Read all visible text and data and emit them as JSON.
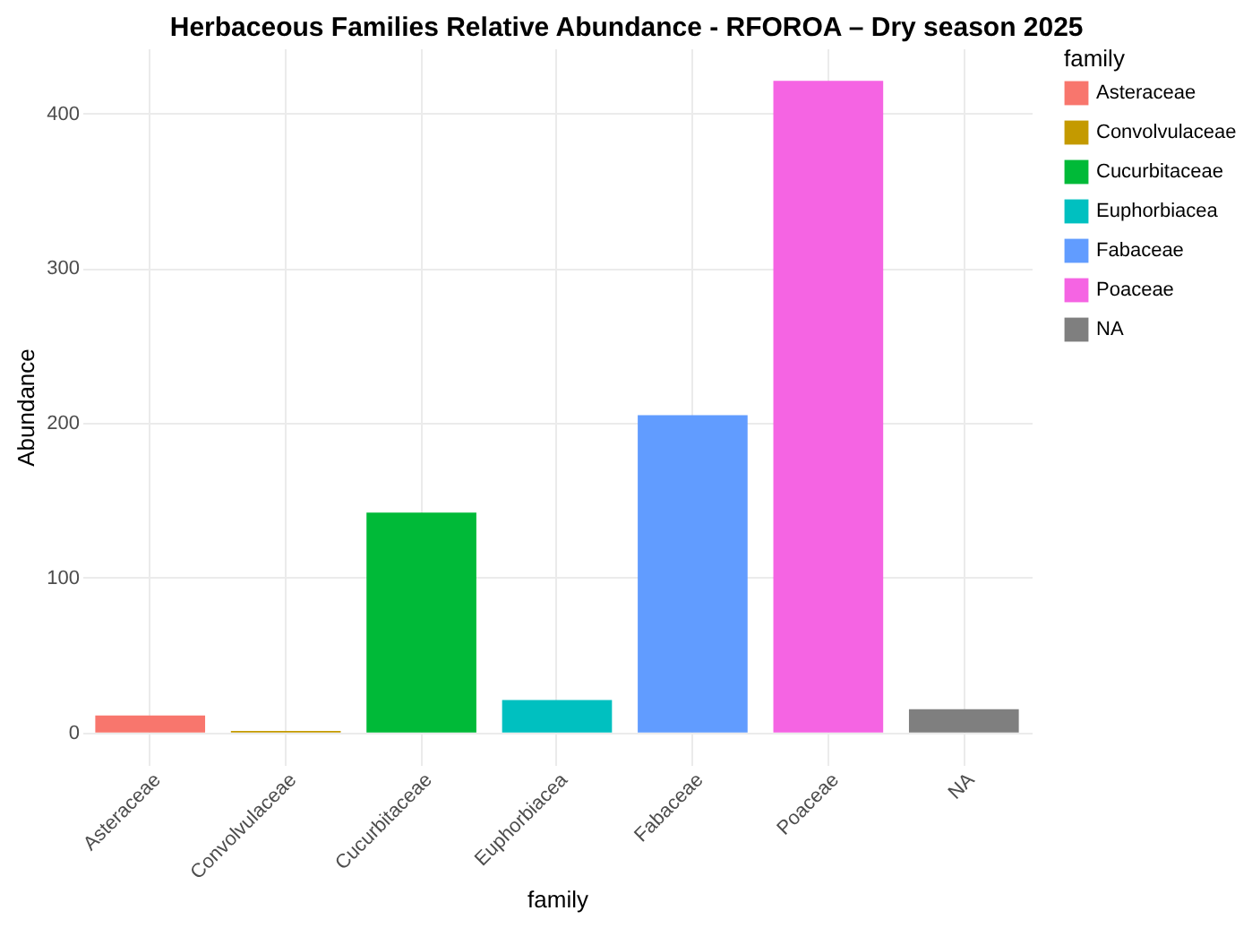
{
  "chart_data": {
    "type": "bar",
    "title": "Herbaceous Families Relative Abundance - RFOROA – Dry season 2025",
    "xlabel": "family",
    "ylabel": "Abundance",
    "legend_title": "family",
    "categories": [
      "Asteraceae",
      "Convolvulaceae",
      "Cucurbitaceae",
      "Euphorbiacea",
      "Fabaceae",
      "Poaceae",
      "NA"
    ],
    "series": [
      {
        "name": "Asteraceae",
        "color": "#f8766d",
        "values": [
          11,
          null,
          null,
          null,
          null,
          null,
          null
        ]
      },
      {
        "name": "Convolvulaceae",
        "color": "#c49a00",
        "values": [
          null,
          1,
          null,
          null,
          null,
          null,
          null
        ]
      },
      {
        "name": "Cucurbitaceae",
        "color": "#00ba38",
        "values": [
          null,
          null,
          142,
          null,
          null,
          null,
          null
        ]
      },
      {
        "name": "Euphorbiacea",
        "color": "#00c0c0",
        "values": [
          null,
          null,
          null,
          21,
          null,
          null,
          null
        ]
      },
      {
        "name": "Fabaceae",
        "color": "#619cff",
        "values": [
          null,
          null,
          null,
          null,
          205,
          null,
          null
        ]
      },
      {
        "name": "Poaceae",
        "color": "#f564e3",
        "values": [
          null,
          null,
          null,
          null,
          null,
          421,
          null
        ]
      },
      {
        "name": "NA",
        "color": "#7f7f7f",
        "values": [
          null,
          null,
          null,
          null,
          null,
          null,
          15
        ]
      }
    ],
    "ylim": [
      -21,
      442
    ],
    "yticks": [
      0,
      100,
      200,
      300,
      400
    ],
    "grid": true,
    "legend": "right"
  }
}
